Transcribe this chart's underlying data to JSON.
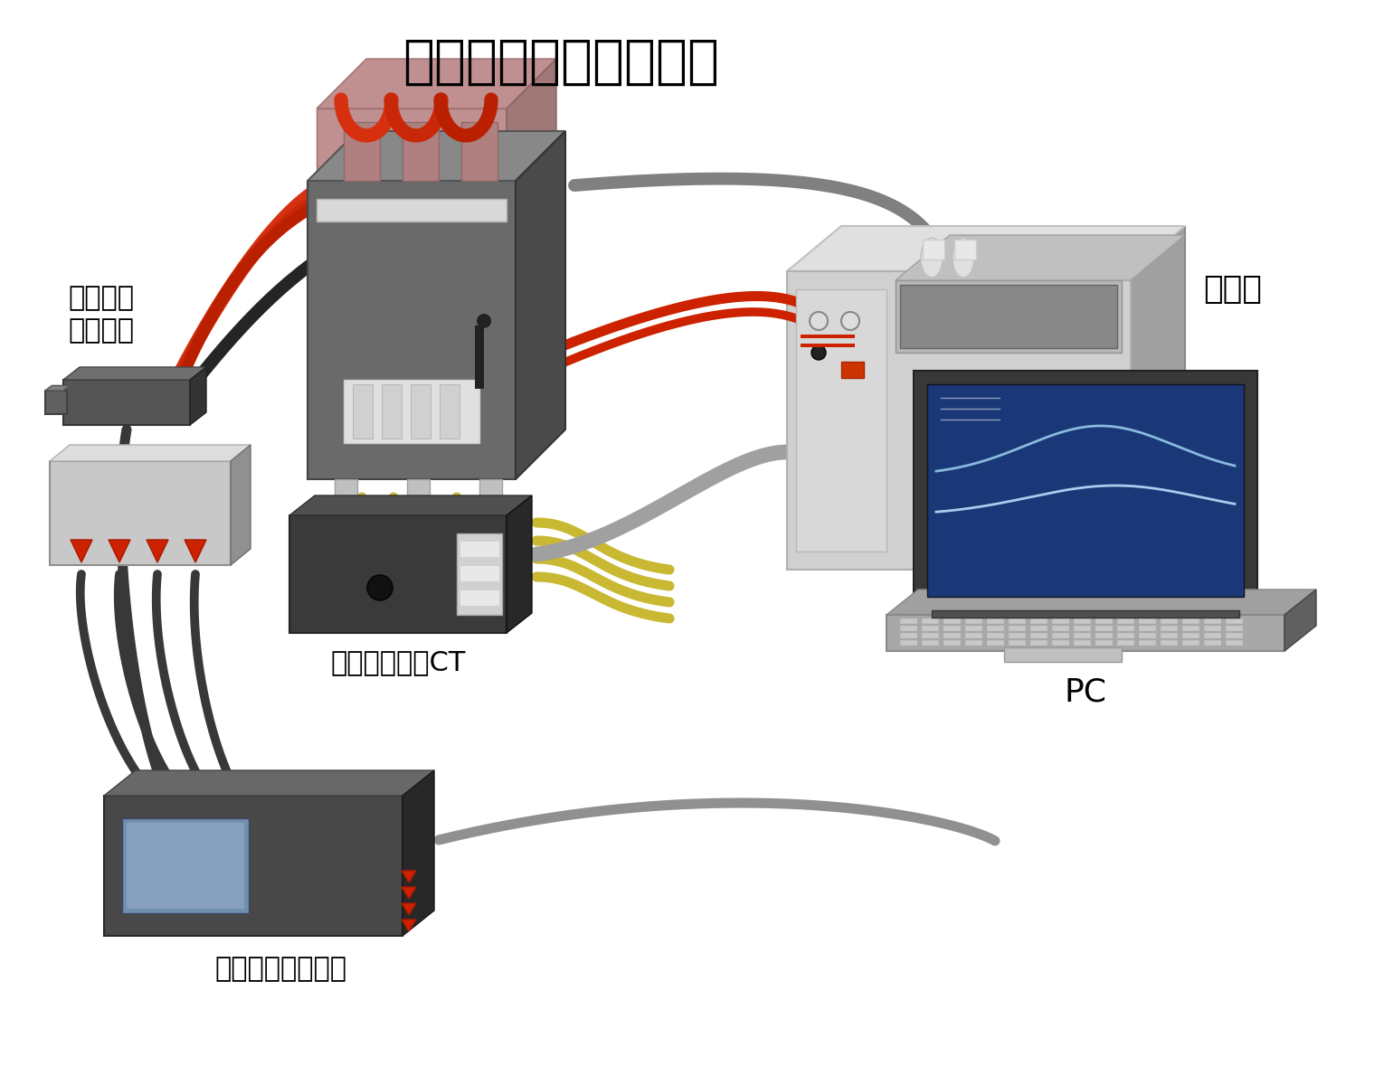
{
  "title": "開閉特性システム構成",
  "title_fontsize": 42,
  "label_logic_probe": "ロジック\nプローブ",
  "label_clamp_ct": "クランプオンCT",
  "label_memory_recorder": "メモリハイコーダ",
  "label_pc": "PC",
  "label_breaker": "遮断器",
  "bg_color": "#ffffff",
  "red_wire1": "#d63010",
  "red_wire2": "#c82808",
  "red_wire3": "#ba2000",
  "red_wire4": "#aa1800",
  "black_wire": "#252525",
  "dark_gray_wire": "#383838",
  "yellow_wire": "#c8b832",
  "gray_wire": "#909090",
  "breaker_front": "#6a6a6a",
  "breaker_top": "#c08888",
  "breaker_side": "#505050",
  "breaker_panel_light": "#b0b0b0",
  "breaker_panel_white": "#e8e8e8",
  "clamp_dark": "#3a3a3a",
  "clamp_mid": "#505050",
  "clamp_light": "#666666",
  "probe_dark": "#404040",
  "probe_mid": "#555555",
  "small_box_light": "#c8c8c8",
  "small_box_mid": "#b0b0b0",
  "small_box_dark": "#909090",
  "recorder_dark": "#383838",
  "recorder_mid": "#484848",
  "recorder_screen": "#7090b0",
  "tester_light": "#d0d0d0",
  "tester_mid": "#b8b8b8",
  "tester_dark": "#a0a0a0",
  "tester_inner_dark": "#888888",
  "pc_dark": "#606060",
  "pc_mid": "#808080",
  "pc_light": "#a0a0a0",
  "pc_screen_bg": "#1a3878",
  "pc_kbd": "#a8a8a8"
}
